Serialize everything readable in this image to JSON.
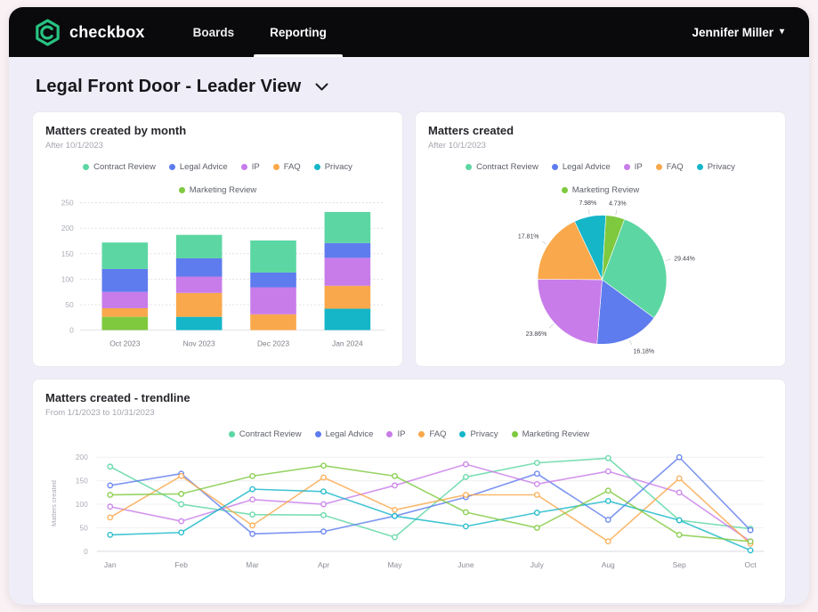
{
  "header": {
    "brand": "checkbox",
    "tabs": [
      {
        "label": "Boards",
        "active": false
      },
      {
        "label": "Reporting",
        "active": true
      }
    ],
    "user": {
      "name": "Jennifer Miller"
    }
  },
  "page": {
    "title": "Legal Front Door - Leader View"
  },
  "theme": {
    "header_bg": "#0a0a0d",
    "app_bg": "#efedf7",
    "page_bg": "#f9f1f3",
    "brand_green": "#27c281",
    "card_bg": "#ffffff"
  },
  "series": [
    {
      "name": "Contract Review",
      "color": "#5cd6a3"
    },
    {
      "name": "Legal Advice",
      "color": "#5e7cee"
    },
    {
      "name": "IP",
      "color": "#c87ce9"
    },
    {
      "name": "FAQ",
      "color": "#f9a84b"
    },
    {
      "name": "Privacy",
      "color": "#14b6c8"
    },
    {
      "name": "Marketing Review",
      "color": "#7ec93e"
    }
  ],
  "chart_data": [
    {
      "id": "matters-by-month",
      "type": "bar",
      "stacked": true,
      "title": "Matters created by month",
      "subtitle": "After 10/1/2023",
      "categories": [
        "Oct 2023",
        "Nov 2023",
        "Dec 2023",
        "Jan 2024"
      ],
      "yticks": [
        0,
        50,
        100,
        150,
        200,
        250
      ],
      "ylim": [
        0,
        250
      ],
      "legend_position": "top",
      "grid": "dotted",
      "bars": [
        {
          "category": "Oct 2023",
          "segments": [
            {
              "series": "Marketing Review",
              "value": 26
            },
            {
              "series": "FAQ",
              "value": 17
            },
            {
              "series": "IP",
              "value": 32
            },
            {
              "series": "Legal Advice",
              "value": 45
            },
            {
              "series": "Contract Review",
              "value": 52
            }
          ]
        },
        {
          "category": "Nov 2023",
          "segments": [
            {
              "series": "Privacy",
              "value": 26
            },
            {
              "series": "FAQ",
              "value": 47
            },
            {
              "series": "IP",
              "value": 32
            },
            {
              "series": "Legal Advice",
              "value": 36
            },
            {
              "series": "Contract Review",
              "value": 46
            }
          ]
        },
        {
          "category": "Dec 2023",
          "segments": [
            {
              "series": "FAQ",
              "value": 31
            },
            {
              "series": "IP",
              "value": 53
            },
            {
              "series": "Legal Advice",
              "value": 29
            },
            {
              "series": "Contract Review",
              "value": 63
            }
          ]
        },
        {
          "category": "Jan 2024",
          "segments": [
            {
              "series": "Privacy",
              "value": 42
            },
            {
              "series": "FAQ",
              "value": 45
            },
            {
              "series": "IP",
              "value": 55
            },
            {
              "series": "Legal Advice",
              "value": 29
            },
            {
              "series": "Contract Review",
              "value": 61
            }
          ]
        }
      ]
    },
    {
      "id": "matters-created-pie",
      "type": "pie",
      "title": "Matters created",
      "subtitle": "After 10/1/2023",
      "legend_position": "top",
      "start_angle_deg": -25.4,
      "slices": [
        {
          "series": "Privacy",
          "pct": 7.98,
          "label": "7.98%"
        },
        {
          "series": "Marketing Review",
          "pct": 4.73,
          "label": "4.73%"
        },
        {
          "series": "Contract Review",
          "pct": 29.44,
          "label": "29.44%"
        },
        {
          "series": "Legal Advice",
          "pct": 16.18,
          "label": "16.18%"
        },
        {
          "series": "IP",
          "pct": 23.86,
          "label": "23.86%"
        },
        {
          "series": "FAQ",
          "pct": 17.81,
          "label": "17.81%"
        }
      ]
    },
    {
      "id": "matters-trendline",
      "type": "line",
      "title": "Matters created - trendline",
      "subtitle": "From 1/1/2023 to 10/31/2023",
      "ylabel": "Matters created",
      "legend_position": "top",
      "grid": "solid",
      "x": [
        "Jan",
        "Feb",
        "Mar",
        "Apr",
        "May",
        "June",
        "July",
        "Aug",
        "Sep",
        "Oct"
      ],
      "yticks": [
        0,
        50,
        100,
        150,
        200
      ],
      "ylim": [
        0,
        210
      ],
      "series": [
        {
          "name": "Contract Review",
          "values": [
            180,
            100,
            78,
            77,
            30,
            158,
            188,
            198,
            66,
            48
          ]
        },
        {
          "name": "Legal Advice",
          "values": [
            140,
            165,
            37,
            42,
            75,
            115,
            165,
            67,
            200,
            45
          ]
        },
        {
          "name": "IP",
          "values": [
            95,
            64,
            110,
            100,
            140,
            185,
            143,
            170,
            125,
            21
          ]
        },
        {
          "name": "FAQ",
          "values": [
            72,
            160,
            55,
            157,
            88,
            120,
            120,
            21,
            155,
            16
          ]
        },
        {
          "name": "Privacy",
          "values": [
            35,
            40,
            132,
            127,
            75,
            53,
            82,
            107,
            66,
            2
          ]
        },
        {
          "name": "Marketing Review",
          "values": [
            120,
            122,
            160,
            182,
            160,
            83,
            50,
            129,
            35,
            21
          ]
        }
      ]
    }
  ]
}
